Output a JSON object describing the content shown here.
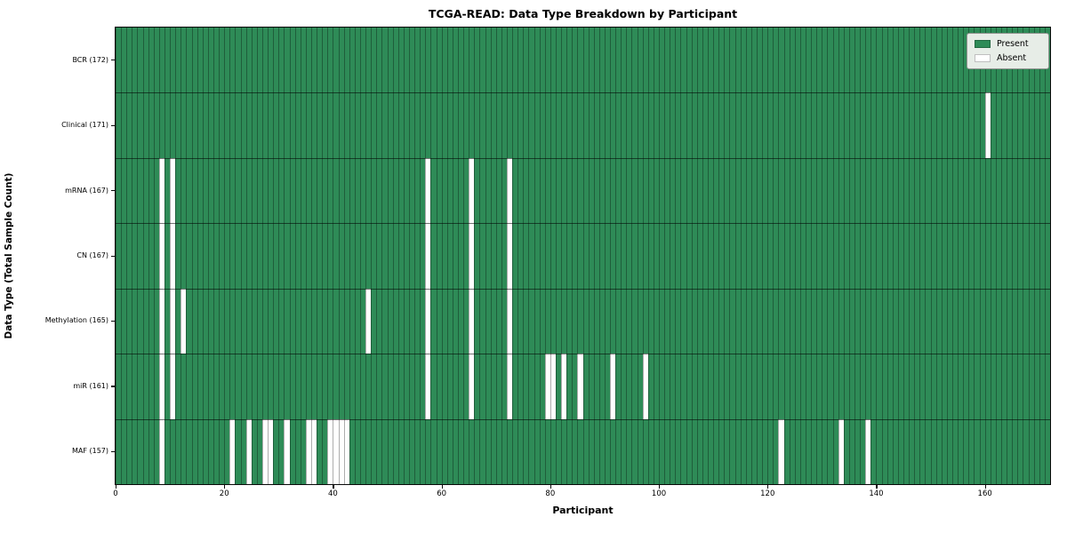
{
  "chart_data": {
    "type": "heatmap",
    "title": "TCGA-READ: Data Type Breakdown by Participant",
    "xlabel": "Participant",
    "ylabel": "Data Type (Total Sample Count)",
    "x_range": [
      0,
      172
    ],
    "x_ticks": [
      0,
      20,
      40,
      60,
      80,
      100,
      120,
      140,
      160
    ],
    "n_participants": 172,
    "grid": true,
    "legend_position": "upper right",
    "cell_values": {
      "present": 1,
      "absent": 0
    },
    "rows": [
      {
        "label": "BCR (172)",
        "total": 172,
        "absent": []
      },
      {
        "label": "Clinical (171)",
        "total": 171,
        "absent": [
          160
        ]
      },
      {
        "label": "mRNA (167)",
        "total": 167,
        "absent": [
          8,
          10,
          57,
          65,
          72
        ]
      },
      {
        "label": "CN (167)",
        "total": 167,
        "absent": [
          8,
          10,
          57,
          65,
          72
        ]
      },
      {
        "label": "Methylation (165)",
        "total": 165,
        "absent": [
          8,
          10,
          12,
          46,
          57,
          65,
          72
        ]
      },
      {
        "label": "miR (161)",
        "total": 161,
        "absent": [
          8,
          10,
          57,
          65,
          72,
          79,
          80,
          82,
          85,
          91,
          97
        ]
      },
      {
        "label": "MAF (157)",
        "total": 157,
        "absent": [
          8,
          21,
          24,
          27,
          28,
          31,
          35,
          36,
          39,
          40,
          41,
          42,
          122,
          133,
          138
        ]
      }
    ],
    "legend": [
      {
        "label": "Present",
        "color": "#2e8b57"
      },
      {
        "label": "Absent",
        "color": "#ffffff"
      }
    ],
    "colors": {
      "present": "#2e8b57",
      "absent": "#ffffff",
      "cell_edge": "rgba(0,0,0,0.32)",
      "row_line": "rgba(0,0,0,0.55)",
      "spine": "#0a0a0a",
      "legend_bg": "#e7ede7"
    }
  }
}
